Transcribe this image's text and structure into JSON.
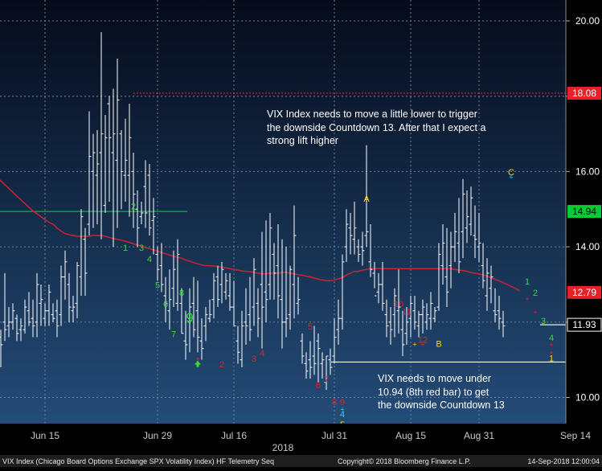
{
  "chart_data": {
    "type": "ohlc",
    "xlabel": "2018",
    "x_ticks": [
      "Jun 15",
      "Jun 29",
      "Jul 16",
      "Jul 31",
      "Aug 15",
      "Aug 31",
      "Sep 14"
    ],
    "y_ticks": [
      10.0,
      12.0,
      14.0,
      16.0,
      18.0,
      20.0
    ],
    "y_tick_labels": [
      "10.00",
      "12.00",
      "14.00",
      "16.00",
      "18.00",
      "20.00"
    ],
    "ylim": [
      9.45,
      20.35
    ],
    "grid": true,
    "bars": [
      [
        12.2,
        11.3,
        11.5,
        11.8
      ],
      [
        11.8,
        10.8,
        11.6,
        11.4
      ],
      [
        13.3,
        11.5,
        12.0,
        11.8
      ],
      [
        12.4,
        11.6,
        11.9,
        12.0
      ],
      [
        12.5,
        11.8,
        12.0,
        12.3
      ],
      [
        12.2,
        11.5,
        12.1,
        11.7
      ],
      [
        12.1,
        11.5,
        11.8,
        11.9
      ],
      [
        12.6,
        11.7,
        11.8,
        12.4
      ],
      [
        12.8,
        11.9,
        12.3,
        12.0
      ],
      [
        12.6,
        11.6,
        12.1,
        11.9
      ],
      [
        13.3,
        11.6,
        12.0,
        13.0
      ],
      [
        13.0,
        11.9,
        12.5,
        12.6
      ],
      [
        12.5,
        11.9,
        12.1,
        12.3
      ],
      [
        13.0,
        11.9,
        12.3,
        12.8
      ],
      [
        12.5,
        12.0,
        12.2,
        12.1
      ],
      [
        12.6,
        11.6,
        12.3,
        11.9
      ],
      [
        13.5,
        11.9,
        12.2,
        13.2
      ],
      [
        13.9,
        12.6,
        13.2,
        13.6
      ],
      [
        13.3,
        12.0,
        13.0,
        12.4
      ],
      [
        12.7,
        12.0,
        12.3,
        12.4
      ],
      [
        13.6,
        12.1,
        12.5,
        13.5
      ],
      [
        15.0,
        12.7,
        13.2,
        14.8
      ],
      [
        14.5,
        12.7,
        14.2,
        13.3
      ],
      [
        17.6,
        14.3,
        14.6,
        16.4
      ],
      [
        17.0,
        14.5,
        16.0,
        16.5
      ],
      [
        17.1,
        14.6,
        15.9,
        16.2
      ],
      [
        19.7,
        14.2,
        16.5,
        17.0
      ],
      [
        17.5,
        14.9,
        15.1,
        16.9
      ],
      [
        18.0,
        15.2,
        17.8,
        16.9
      ],
      [
        18.2,
        14.0,
        16.5,
        17.0
      ],
      [
        19.0,
        14.5,
        16.3,
        17.9
      ],
      [
        17.1,
        15.0,
        17.0,
        16.0
      ],
      [
        17.4,
        15.2,
        15.9,
        16.3
      ],
      [
        17.8,
        14.8,
        15.9,
        16.9
      ],
      [
        16.5,
        14.5,
        16.0,
        15.4
      ],
      [
        15.5,
        14.0,
        15.0,
        14.5
      ],
      [
        15.2,
        14.6,
        14.8,
        14.9
      ],
      [
        16.3,
        14.5,
        15.6,
        14.9
      ],
      [
        16.2,
        14.3,
        15.9,
        14.5
      ],
      [
        15.3,
        13.8,
        14.7,
        14.8
      ],
      [
        14.0,
        13.1,
        13.8,
        13.4
      ],
      [
        14.1,
        12.8,
        13.5,
        13.0
      ],
      [
        13.2,
        12.0,
        12.7,
        12.5
      ],
      [
        13.4,
        11.8,
        12.3,
        12.6
      ],
      [
        13.9,
        12.4,
        12.9,
        13.4
      ],
      [
        14.2,
        12.3,
        12.5,
        13.8
      ],
      [
        12.9,
        11.7,
        12.5,
        11.7
      ],
      [
        12.3,
        11.0,
        11.5,
        11.4
      ],
      [
        12.9,
        11.2,
        12.0,
        12.4
      ],
      [
        13.2,
        11.6,
        12.5,
        11.8
      ],
      [
        13.1,
        11.2,
        12.3,
        11.6
      ],
      [
        12.1,
        11.0,
        11.5,
        11.3
      ],
      [
        12.4,
        11.5,
        11.9,
        12.2
      ],
      [
        12.6,
        12.0,
        12.1,
        12.2
      ],
      [
        13.3,
        12.1,
        12.6,
        13.1
      ],
      [
        13.5,
        12.4,
        13.2,
        12.6
      ],
      [
        13.6,
        12.5,
        13.0,
        13.4
      ],
      [
        13.3,
        12.6,
        12.8,
        13.1
      ],
      [
        13.3,
        12.3,
        12.7,
        12.4
      ],
      [
        13.1,
        11.9,
        12.4,
        11.9
      ],
      [
        11.9,
        10.9,
        11.5,
        11.2
      ],
      [
        12.3,
        10.8,
        11.0,
        11.9
      ],
      [
        12.9,
        11.4,
        12.0,
        11.9
      ],
      [
        13.2,
        11.5,
        12.2,
        11.8
      ],
      [
        13.7,
        11.9,
        12.4,
        13.4
      ],
      [
        12.9,
        11.6,
        12.5,
        12.1
      ],
      [
        14.4,
        11.3,
        13.0,
        12.4
      ],
      [
        14.7,
        12.0,
        12.8,
        12.6
      ],
      [
        14.9,
        12.6,
        13.0,
        14.5
      ],
      [
        14.1,
        12.6,
        13.8,
        13.3
      ],
      [
        14.6,
        12.1,
        13.5,
        12.7
      ],
      [
        14.2,
        11.3,
        12.6,
        12.0
      ],
      [
        14.0,
        11.6,
        12.0,
        12.1
      ],
      [
        13.5,
        11.8,
        12.2,
        13.4
      ],
      [
        15.1,
        12.1,
        13.0,
        14.3
      ],
      [
        13.2,
        12.2,
        12.5,
        12.6
      ],
      [
        11.7,
        10.9,
        11.5,
        11.1
      ],
      [
        11.2,
        10.5,
        10.9,
        10.7
      ],
      [
        11.5,
        10.5,
        11.0,
        10.8
      ],
      [
        11.9,
        10.6,
        11.1,
        10.9
      ],
      [
        11.7,
        10.4,
        11.5,
        11.3
      ],
      [
        11.2,
        10.5,
        10.9,
        11.0
      ],
      [
        11.1,
        10.2,
        10.4,
        11.1
      ],
      [
        11.3,
        10.6,
        11.0,
        10.8
      ],
      [
        12.1,
        10.9,
        11.1,
        11.6
      ],
      [
        12.6,
        11.4,
        11.8,
        12.1
      ],
      [
        13.8,
        11.8,
        12.1,
        13.6
      ],
      [
        15.0,
        13.6,
        14.0,
        14.6
      ],
      [
        14.9,
        13.8,
        14.5,
        14.3
      ],
      [
        15.2,
        13.8,
        14.2,
        14.5
      ],
      [
        14.2,
        13.6,
        14.0,
        13.8
      ],
      [
        14.4,
        13.5,
        14.0,
        13.9
      ],
      [
        16.7,
        14.0,
        14.3,
        14.4
      ],
      [
        14.6,
        13.2,
        13.6,
        13.4
      ],
      [
        13.6,
        12.9,
        13.3,
        12.7
      ],
      [
        13.3,
        12.5,
        12.8,
        13.0
      ],
      [
        13.6,
        12.3,
        13.0,
        12.5
      ],
      [
        12.6,
        11.6,
        12.2,
        11.9
      ],
      [
        12.4,
        11.4,
        12.0,
        11.8
      ],
      [
        12.9,
        11.6,
        12.2,
        12.7
      ],
      [
        13.4,
        11.7,
        12.3,
        12.4
      ],
      [
        12.3,
        11.1,
        11.8,
        11.4
      ],
      [
        12.4,
        11.4,
        11.7,
        12.0
      ],
      [
        12.7,
        11.6,
        12.1,
        12.5
      ],
      [
        12.7,
        11.8,
        12.3,
        12.0
      ],
      [
        12.3,
        11.6,
        11.9,
        12.2
      ],
      [
        12.6,
        11.7,
        12.2,
        12.4
      ],
      [
        12.5,
        11.8,
        12.0,
        12.2
      ],
      [
        12.8,
        11.8,
        12.1,
        12.5
      ],
      [
        12.4,
        12.0,
        12.1,
        12.3
      ],
      [
        14.1,
        12.3,
        12.4,
        13.8
      ],
      [
        14.6,
        13.0,
        13.5,
        14.1
      ],
      [
        14.5,
        12.4,
        13.2,
        12.8
      ],
      [
        14.4,
        12.9,
        13.5,
        14.0
      ],
      [
        14.9,
        13.6,
        14.0,
        14.4
      ],
      [
        15.3,
        13.3,
        14.1,
        13.6
      ],
      [
        15.8,
        13.7,
        14.4,
        15.4
      ],
      [
        15.5,
        14.1,
        14.5,
        14.8
      ],
      [
        15.6,
        14.3,
        14.6,
        15.3
      ],
      [
        15.1,
        13.7,
        14.3,
        14.2
      ],
      [
        14.9,
        13.6,
        14.0,
        14.1
      ],
      [
        14.1,
        12.9,
        13.5,
        13.1
      ],
      [
        13.7,
        12.3,
        12.7,
        13.3
      ],
      [
        13.5,
        12.5,
        12.9,
        13.2
      ],
      [
        12.9,
        12.0,
        12.3,
        12.2
      ],
      [
        12.7,
        11.8,
        12.3,
        12.1
      ],
      [
        12.3,
        11.6,
        12.0,
        11.9
      ]
    ],
    "series": [
      {
        "name": "",
        "values": [
          15.85,
          15.75,
          15.65,
          15.55,
          15.45,
          15.35,
          15.25,
          15.15,
          15.05,
          14.95,
          14.88,
          14.8,
          14.72,
          14.65,
          14.6,
          14.5,
          14.42,
          14.35,
          14.32,
          14.3,
          14.28,
          14.28,
          14.28,
          14.28,
          14.3,
          14.3,
          14.3,
          14.28,
          14.25,
          14.22,
          14.2,
          14.18,
          14.15,
          14.12,
          14.08,
          14.05,
          14.02,
          13.98,
          13.95,
          13.92,
          13.88,
          13.85,
          13.82,
          13.78,
          13.75,
          13.72,
          13.7,
          13.65,
          13.62,
          13.58,
          13.55,
          13.52,
          13.5,
          13.5,
          13.49,
          13.48,
          13.46,
          13.44,
          13.42,
          13.4,
          13.38,
          13.36,
          13.35,
          13.34,
          13.32,
          13.3,
          13.28,
          13.28,
          13.3,
          13.3,
          13.3,
          13.31,
          13.32,
          13.3,
          13.28,
          13.26,
          13.25,
          13.22,
          13.2,
          13.17,
          13.14,
          13.12,
          13.1,
          13.1,
          13.12,
          13.15,
          13.18,
          13.25,
          13.3,
          13.35,
          13.35,
          13.38,
          13.4,
          13.42,
          13.42,
          13.42,
          13.42,
          13.42,
          13.42,
          13.42,
          13.42,
          13.42,
          13.42,
          13.42,
          13.42,
          13.42,
          13.42,
          13.42,
          13.42,
          13.42,
          13.42,
          13.42,
          13.42,
          13.42,
          13.4,
          13.38,
          13.37,
          13.35,
          13.32,
          13.3,
          13.28,
          13.25,
          13.22,
          13.18,
          13.14,
          13.1,
          13.05,
          13.0,
          12.95,
          12.9,
          12.83
        ]
      }
    ],
    "hlines": [
      {
        "y": 18.08,
        "label": "18.08",
        "color": "#e8202a"
      },
      {
        "y": 14.94,
        "label": "14.94",
        "color": "#00cc33"
      },
      {
        "y": 12.79,
        "label": "12.79",
        "color": "#e8202a"
      },
      {
        "y": 11.93,
        "label": "11.93",
        "color": "#ffffff"
      },
      {
        "y": 10.94,
        "label": "",
        "color": "#ffffff"
      }
    ],
    "counts": [
      {
        "bar": 32,
        "y": 13.9,
        "text": "1",
        "color": "#33dd33"
      },
      {
        "bar": 34,
        "y": 15.0,
        "text": "2",
        "color": "#33dd33"
      },
      {
        "bar": 36,
        "y": 13.9,
        "text": "3",
        "color": "#33dd33"
      },
      {
        "bar": 38,
        "y": 13.6,
        "text": "4",
        "color": "#33dd33"
      },
      {
        "bar": 40,
        "y": 12.9,
        "text": "5",
        "color": "#33dd33"
      },
      {
        "bar": 42,
        "y": 12.4,
        "text": "6",
        "color": "#33dd33"
      },
      {
        "bar": 44,
        "y": 11.6,
        "text": "7",
        "color": "#33dd33"
      },
      {
        "bar": 46,
        "y": 12.7,
        "text": "8",
        "color": "#33dd33"
      },
      {
        "bar": 48,
        "y": 12.0,
        "text": "9",
        "color": "#33dd33"
      },
      {
        "bar": 50,
        "y": 10.9,
        "text": "1",
        "color": "#e8202a"
      },
      {
        "bar": 56,
        "y": 10.8,
        "text": "2",
        "color": "#e8202a"
      },
      {
        "bar": 64,
        "y": 10.95,
        "text": "3",
        "color": "#e8202a"
      },
      {
        "bar": 66,
        "y": 11.1,
        "text": "4",
        "color": "#e8202a"
      },
      {
        "bar": 78,
        "y": 11.8,
        "text": "5",
        "color": "#e8202a"
      },
      {
        "bar": 80,
        "y": 10.25,
        "text": "6",
        "color": "#e8202a"
      },
      {
        "bar": 82,
        "y": 10.4,
        "text": "7",
        "color": "#e8202a"
      },
      {
        "bar": 84,
        "y": 9.8,
        "text": "8",
        "color": "#e8202a"
      },
      {
        "bar": 86,
        "y": 9.8,
        "text": "9",
        "color": "#e8202a"
      },
      {
        "bar": 86,
        "y": 9.48,
        "text": "4",
        "color": "#33ccee"
      },
      {
        "bar": 86,
        "y": 9.2,
        "text": "5",
        "color": "#ffd700"
      },
      {
        "bar": 92,
        "y": 15.2,
        "text": "A",
        "color": "#ffd700"
      },
      {
        "bar": 100,
        "y": 12.4,
        "text": "10",
        "color": "#e8202a"
      },
      {
        "bar": 102,
        "y": 12.2,
        "text": "11",
        "color": "#e8202a"
      },
      {
        "bar": 106,
        "y": 11.45,
        "text": "12",
        "color": "#e8202a"
      },
      {
        "bar": 110,
        "y": 11.35,
        "text": "B",
        "color": "#ffd700"
      },
      {
        "bar": 128,
        "y": 15.9,
        "text": "C",
        "color": "#ffd700"
      },
      {
        "bar": 132,
        "y": 13.0,
        "text": "1",
        "color": "#33dd33"
      },
      {
        "bar": 134,
        "y": 12.7,
        "text": "2",
        "color": "#33dd33"
      },
      {
        "bar": 136,
        "y": 11.95,
        "text": "3",
        "color": "#33dd33"
      },
      {
        "bar": 138,
        "y": 11.5,
        "text": "4",
        "color": "#33dd33"
      },
      {
        "bar": 138,
        "y": 10.96,
        "text": "1",
        "color": "#ffd700"
      }
    ],
    "annotations": [
      "VIX Index needs to move a little lower to trigger",
      "the downside Countdown 13.  After that I expect a",
      "strong lift higher",
      "VIX needs to move under",
      "10.94 (8th red bar) to get",
      "the downside Countdown 13"
    ],
    "colors": {
      "bg_top": "#050b1a",
      "bg_bottom": "#234c78",
      "bars": "#ffffff",
      "ma": "#cc2233",
      "grid": "#6e8094"
    }
  },
  "footer": {
    "left": "VIX Index (Chicago Board Options Exchange SPX Volatility Index) HF Telemetry Seq",
    "center": "Copyright© 2018 Bloomberg Finance L.P.",
    "right": "14-Sep-2018 12:00:04"
  }
}
